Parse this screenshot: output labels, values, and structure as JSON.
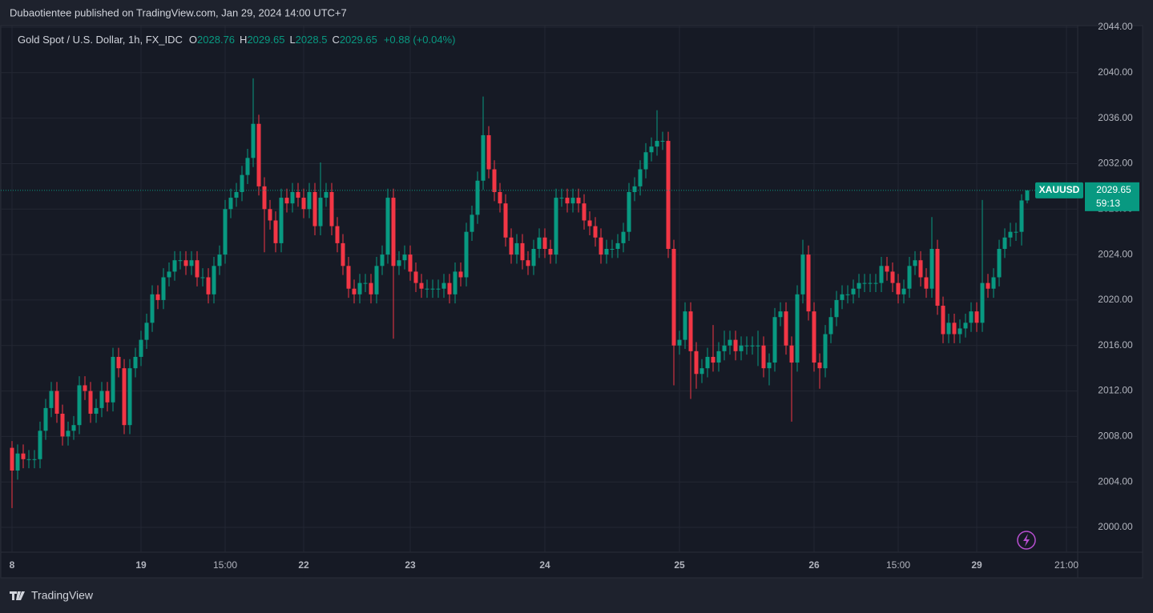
{
  "header": {
    "byline": "Dubaotientee published on TradingView.com, Jan 29, 2024 14:00 UTC+7",
    "brand": "TradingView"
  },
  "chart_data": {
    "type": "candlestick",
    "title": "Gold Spot / U.S. Dollar, 1h, FX_IDC",
    "legend": {
      "o": "O",
      "h": "H",
      "l": "L",
      "c": "C",
      "change": "+0.88 (+0.04%)"
    },
    "symbol_tag": "XAUUSD",
    "countdown": "59:13",
    "up_color": "#089981",
    "down_color": "#f23645",
    "grid": true,
    "xlim": [
      -2,
      190
    ],
    "xticks": [
      {
        "value": 0,
        "label": "8"
      },
      {
        "value": 23,
        "label": "19"
      },
      {
        "value": 38,
        "label": "15:00"
      },
      {
        "value": 52,
        "label": "22"
      },
      {
        "value": 71,
        "label": "23"
      },
      {
        "value": 95,
        "label": "24"
      },
      {
        "value": 119,
        "label": "25"
      },
      {
        "value": 143,
        "label": "26"
      },
      {
        "value": 158,
        "label": "15:00"
      },
      {
        "value": 172,
        "label": "29"
      },
      {
        "value": 188,
        "label": "21:00"
      }
    ],
    "ylim": [
      1997.82,
      2044.14
    ],
    "yticks": [
      {
        "value": 2000,
        "label": "2000.00"
      },
      {
        "value": 2004,
        "label": "2004.00"
      },
      {
        "value": 2008,
        "label": "2008.00"
      },
      {
        "value": 2012,
        "label": "2012.00"
      },
      {
        "value": 2016,
        "label": "2016.00"
      },
      {
        "value": 2020,
        "label": "2020.00"
      },
      {
        "value": 2024,
        "label": "2024.00"
      },
      {
        "value": 2028,
        "label": "2028.00"
      },
      {
        "value": 2032,
        "label": "2032.00"
      },
      {
        "value": 2036,
        "label": "2036.00"
      },
      {
        "value": 2040,
        "label": "2040.00"
      },
      {
        "value": 2044,
        "label": "2044.00"
      }
    ],
    "open": [
      2007,
      2005,
      2006.5,
      2006,
      2006,
      2006,
      2008.5,
      2010.5,
      2012,
      2010,
      2008,
      2008.5,
      2009,
      2012.5,
      2012,
      2010,
      2010.5,
      2012,
      2011,
      2015,
      2014,
      2009,
      2014,
      2015,
      2016.5,
      2018,
      2020.5,
      2020,
      2022,
      2022.5,
      2023.5,
      2023.5,
      2023,
      2023.5,
      2022,
      2022,
      2020.5,
      2023,
      2024,
      2028,
      2029,
      2029.5,
      2031,
      2032.5,
      2035.5,
      2030,
      2028,
      2027,
      2025,
      2029,
      2028.5,
      2029.5,
      2029,
      2028,
      2029.5,
      2026.5,
      2029,
      2029.5,
      2026.5,
      2025,
      2023,
      2021,
      2020.5,
      2021.5,
      2021.5,
      2020.5,
      2023,
      2024,
      2029,
      2023,
      2023.5,
      2024,
      2022.5,
      2021.5,
      2021,
      2021,
      2021,
      2021,
      2021.5,
      2020.5,
      2022.5,
      2022,
      2026,
      2027.5,
      2030.5,
      2034.5,
      2031.5,
      2029.5,
      2028.5,
      2025.5,
      2024,
      2025,
      2023.5,
      2023,
      2024.5,
      2025.5,
      2024.5,
      2024,
      2029,
      2029,
      2028.5,
      2029,
      2028.5,
      2027,
      2026.5,
      2025.5,
      2024,
      2024.5,
      2024.5,
      2025,
      2026,
      2029.5,
      2030,
      2031.5,
      2033,
      2033.5,
      2034,
      2034,
      2024.5,
      2016,
      2016.5,
      2019,
      2015.5,
      2013.5,
      2014,
      2015,
      2014.5,
      2015.5,
      2016,
      2016.5,
      2015.5,
      2016,
      2016,
      2016,
      2016,
      2014,
      2014.5,
      2018.5,
      2019,
      2016,
      2014.5,
      2020.5,
      2024,
      2019,
      2014.5,
      2014,
      2017,
      2018.5,
      2020,
      2020.5,
      2020.5,
      2021,
      2021.5,
      2021.5,
      2021.5,
      2021.5,
      2023,
      2022.5,
      2021.5,
      2020.5,
      2021,
      2023,
      2023.5,
      2022,
      2021,
      2024.5,
      2019.5,
      2017,
      2018,
      2017,
      2017.5,
      2018,
      2019,
      2018,
      2021.5,
      2021,
      2022,
      2024.5,
      2025.5,
      2026,
      2026,
      2028.76
    ],
    "high": [
      2007.6,
      2007.3,
      2007.3,
      2006.8,
      2006.8,
      2009.3,
      2011.3,
      2012.8,
      2012.8,
      2010.8,
      2009.3,
      2009.8,
      2013.3,
      2013.3,
      2012.8,
      2011.3,
      2012.8,
      2012.8,
      2015.8,
      2015.8,
      2014.8,
      2014.8,
      2015.8,
      2017.3,
      2018.8,
      2021.3,
      2021.3,
      2022.8,
      2023.3,
      2024.3,
      2024.3,
      2024.3,
      2024.3,
      2024.3,
      2022.8,
      2022.8,
      2023.8,
      2024.8,
      2028.8,
      2029.8,
      2030.3,
      2031.8,
      2033.3,
      2039.5,
      2036.3,
      2030.8,
      2028.8,
      2027.8,
      2029.8,
      2029.8,
      2030.3,
      2030.3,
      2029.8,
      2030.3,
      2030.3,
      2032.1,
      2030.3,
      2030.3,
      2027.3,
      2025.8,
      2023.8,
      2021.8,
      2022.3,
      2022.3,
      2022.3,
      2023.8,
      2024.8,
      2029.8,
      2029.8,
      2024.3,
      2024.8,
      2024.8,
      2023.3,
      2022.3,
      2021.8,
      2021.8,
      2021.8,
      2022.3,
      2022.3,
      2023.3,
      2023.3,
      2026.8,
      2028.3,
      2031.3,
      2037.9,
      2035.3,
      2032.3,
      2030.3,
      2029.3,
      2026.3,
      2025.8,
      2025.8,
      2024.3,
      2025.3,
      2026.3,
      2026.3,
      2025.3,
      2029.8,
      2029.8,
      2029.8,
      2029.8,
      2029.8,
      2029.3,
      2027.8,
      2027.3,
      2026.3,
      2025.3,
      2025.3,
      2025.8,
      2026.8,
      2030.3,
      2030.8,
      2032.3,
      2033.8,
      2034.3,
      2036.7,
      2034.8,
      2034.8,
      2025.3,
      2017.3,
      2019.8,
      2019.8,
      2016.3,
      2014.8,
      2015.8,
      2017.8,
      2016.3,
      2017.3,
      2017.3,
      2017.3,
      2016.8,
      2016.8,
      2016.8,
      2017.3,
      2016.8,
      2015.3,
      2019.3,
      2019.8,
      2019.8,
      2016.8,
      2021.3,
      2025.3,
      2024.8,
      2019.8,
      2015.3,
      2017.8,
      2019.3,
      2020.8,
      2021.3,
      2021.3,
      2021.8,
      2022.3,
      2022.3,
      2022.3,
      2022.3,
      2023.8,
      2023.8,
      2023.3,
      2022.3,
      2021.8,
      2023.8,
      2024.3,
      2024.3,
      2022.8,
      2027.3,
      2025.3,
      2020.3,
      2018.8,
      2018.8,
      2018.3,
      2018.8,
      2019.8,
      2019.8,
      2028.8,
      2022.3,
      2022.8,
      2025.3,
      2026.3,
      2026.8,
      2026.8,
      2029.3,
      2029.65
    ],
    "low": [
      2001.7,
      2004.2,
      2005.2,
      2005.2,
      2005.2,
      2005.2,
      2007.7,
      2009.7,
      2009.2,
      2007.2,
      2007.2,
      2007.7,
      2008.2,
      2011.2,
      2009.2,
      2009.2,
      2009.7,
      2010.2,
      2010.2,
      2013.2,
      2008.2,
      2008.2,
      2013.2,
      2014.2,
      2015.7,
      2017.2,
      2019.2,
      2019.2,
      2021.2,
      2021.7,
      2022.7,
      2022.2,
      2022.2,
      2021.2,
      2021.2,
      2019.7,
      2019.7,
      2022.2,
      2023.2,
      2027.2,
      2028.2,
      2028.7,
      2030.2,
      2031.7,
      2029.2,
      2024.2,
      2026.2,
      2024.2,
      2024.2,
      2027.7,
      2027.7,
      2028.2,
      2027.2,
      2027.2,
      2025.7,
      2025.7,
      2028.2,
      2025.7,
      2024.2,
      2022.2,
      2020.2,
      2019.7,
      2019.7,
      2020.7,
      2019.7,
      2019.7,
      2022.2,
      2023.2,
      2016.6,
      2022.2,
      2022.7,
      2021.7,
      2020.7,
      2020.2,
      2020.2,
      2020.2,
      2020.2,
      2020.2,
      2019.7,
      2019.7,
      2021.2,
      2021.2,
      2025.2,
      2026.7,
      2029.7,
      2030.7,
      2028.7,
      2027.7,
      2024.7,
      2023.2,
      2023.2,
      2022.7,
      2022.2,
      2022.2,
      2023.7,
      2023.7,
      2023.2,
      2023.2,
      2028.2,
      2027.7,
      2027.7,
      2027.7,
      2026.2,
      2025.7,
      2024.7,
      2023.2,
      2023.2,
      2023.7,
      2023.7,
      2024.2,
      2025.2,
      2028.7,
      2029.2,
      2030.7,
      2032.2,
      2032.7,
      2033.2,
      2023.7,
      2012.5,
      2015.2,
      2015.7,
      2011.3,
      2012.2,
      2012.7,
      2013.2,
      2013.7,
      2013.7,
      2014.7,
      2015.2,
      2014.7,
      2014.7,
      2015.2,
      2015.2,
      2014.2,
      2013.2,
      2012.5,
      2013.7,
      2017.7,
      2015.2,
      2009.3,
      2013.7,
      2019.7,
      2018.2,
      2013.7,
      2012.2,
      2013.2,
      2016.2,
      2017.7,
      2019.2,
      2019.7,
      2019.7,
      2020.2,
      2020.7,
      2020.7,
      2020.7,
      2020.7,
      2021.7,
      2020.7,
      2019.7,
      2019.7,
      2020.2,
      2022.2,
      2021.2,
      2020.2,
      2020.2,
      2018.7,
      2016.2,
      2016.2,
      2016.2,
      2016.2,
      2016.7,
      2017.2,
      2017.2,
      2017.2,
      2020.2,
      2020.2,
      2021.2,
      2023.7,
      2024.7,
      2025.2,
      2024.8,
      2028.5
    ],
    "close": [
      2005,
      2006.5,
      2006,
      2006,
      2006,
      2008.5,
      2010.5,
      2012,
      2010,
      2008,
      2008.5,
      2009,
      2012.5,
      2012,
      2010,
      2010.5,
      2012,
      2011,
      2015,
      2014,
      2009,
      2014,
      2015,
      2016.5,
      2018,
      2020.5,
      2020,
      2022,
      2022.5,
      2023.5,
      2023.5,
      2023,
      2023.5,
      2022,
      2022,
      2020.5,
      2023,
      2024,
      2028,
      2029,
      2029.5,
      2031,
      2032.5,
      2035.5,
      2030,
      2028,
      2027,
      2025,
      2029,
      2028.5,
      2029.5,
      2029,
      2028,
      2029.5,
      2026.5,
      2029,
      2029.5,
      2026.5,
      2025,
      2023,
      2021,
      2020.5,
      2021.5,
      2021.5,
      2020.5,
      2023,
      2024,
      2029,
      2023,
      2023.5,
      2024,
      2022.5,
      2021.5,
      2021,
      2021,
      2021,
      2021,
      2021.5,
      2020.5,
      2022.5,
      2022,
      2026,
      2027.5,
      2030.5,
      2034.5,
      2031.5,
      2029.5,
      2028.5,
      2025.5,
      2024,
      2025,
      2023.5,
      2023,
      2024.5,
      2025.5,
      2024.5,
      2024,
      2029,
      2029,
      2028.5,
      2029,
      2028.5,
      2027,
      2026.5,
      2025.5,
      2024,
      2024.5,
      2024.5,
      2025,
      2026,
      2029.5,
      2030,
      2031.5,
      2033,
      2033.5,
      2034,
      2034,
      2024.5,
      2016,
      2016.5,
      2019,
      2015.5,
      2013.5,
      2014,
      2015,
      2014.5,
      2015.5,
      2016,
      2016.5,
      2015.5,
      2016,
      2016,
      2016,
      2016,
      2014,
      2014.5,
      2018.5,
      2019,
      2016,
      2014.5,
      2020.5,
      2024,
      2019,
      2014.5,
      2014,
      2017,
      2018.5,
      2020,
      2020.5,
      2020.5,
      2021,
      2021.5,
      2021.5,
      2021.5,
      2021.5,
      2023,
      2022.5,
      2021.5,
      2020.5,
      2021,
      2023,
      2023.5,
      2022,
      2021,
      2024.5,
      2019.5,
      2017,
      2018,
      2017,
      2017.5,
      2018,
      2019,
      2018,
      2021.5,
      2021,
      2022,
      2024.5,
      2025.5,
      2026,
      2026,
      2028.76,
      2029.65
    ]
  }
}
